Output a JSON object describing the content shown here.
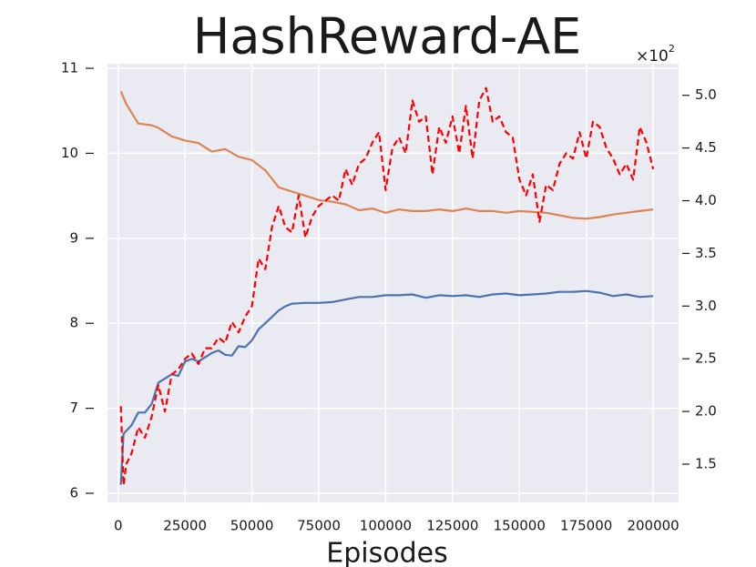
{
  "chart_data": {
    "type": "line",
    "title": "HashReward-AE",
    "x_label": "Episodes",
    "y2_offset": {
      "text": "×10",
      "exponent": "2"
    },
    "xlim": [
      -4000,
      209500
    ],
    "xticks": [
      0,
      25000,
      50000,
      75000,
      100000,
      125000,
      150000,
      175000,
      200000
    ],
    "ylim": [
      5.893,
      11.054
    ],
    "yticks": [
      6,
      7,
      8,
      9,
      10,
      11
    ],
    "y2lim": [
      1.137,
      5.3
    ],
    "y2ticks": [
      1.5,
      {
        "value": 2,
        "label": "2.0"
      },
      2.5,
      {
        "value": 3,
        "label": "3.0"
      },
      3.5,
      {
        "value": 4,
        "label": "4.0"
      },
      4.5,
      {
        "value": 5,
        "label": "5.0"
      }
    ],
    "grid": true,
    "series": [
      {
        "color": "#4c72b0",
        "dash": false,
        "x": [
          1000,
          2000,
          5000,
          7500,
          10000,
          12500,
          15000,
          17500,
          20000,
          22500,
          25000,
          27500,
          30000,
          35000,
          37500,
          40000,
          42500,
          45000,
          47500,
          50000,
          52500,
          55000,
          60000,
          62500,
          65000,
          70000,
          75000,
          80000,
          85000,
          90000,
          95000,
          100000,
          105000,
          110000,
          115000,
          120000,
          125000,
          130000,
          135000,
          140000,
          145000,
          150000,
          155000,
          160000,
          165000,
          170000,
          175000,
          180000,
          185000,
          190000,
          195000,
          200000
        ],
        "values": [
          6.1,
          6.7,
          6.8,
          6.95,
          6.95,
          7.05,
          7.3,
          7.35,
          7.4,
          7.38,
          7.55,
          7.58,
          7.55,
          7.65,
          7.68,
          7.63,
          7.62,
          7.73,
          7.72,
          7.8,
          7.93,
          8.0,
          8.15,
          8.2,
          8.23,
          8.24,
          8.24,
          8.25,
          8.28,
          8.31,
          8.31,
          8.33,
          8.33,
          8.34,
          8.3,
          8.33,
          8.32,
          8.33,
          8.31,
          8.34,
          8.35,
          8.33,
          8.34,
          8.35,
          8.37,
          8.37,
          8.38,
          8.36,
          8.32,
          8.34,
          8.31,
          8.32
        ]
      },
      {
        "color": "#dd8452",
        "dash": false,
        "x": [
          1000,
          3000,
          7500,
          12500,
          15000,
          20000,
          25000,
          30000,
          35000,
          40000,
          45000,
          50000,
          55000,
          60000,
          65000,
          70000,
          75000,
          80000,
          85000,
          90000,
          95000,
          100000,
          105000,
          110000,
          115000,
          120000,
          125000,
          130000,
          135000,
          140000,
          145000,
          150000,
          155000,
          160000,
          165000,
          170000,
          175000,
          180000,
          185000,
          190000,
          195000,
          200000
        ],
        "values": [
          10.73,
          10.58,
          10.35,
          10.33,
          10.3,
          10.2,
          10.15,
          10.12,
          10.02,
          10.05,
          9.96,
          9.92,
          9.8,
          9.6,
          9.55,
          9.5,
          9.45,
          9.43,
          9.4,
          9.33,
          9.35,
          9.3,
          9.34,
          9.32,
          9.32,
          9.34,
          9.32,
          9.35,
          9.32,
          9.32,
          9.3,
          9.32,
          9.31,
          9.3,
          9.27,
          9.24,
          9.23,
          9.25,
          9.28,
          9.3,
          9.32,
          9.34
        ]
      },
      {
        "color": "#ff0000",
        "dash": true,
        "axis": "y2",
        "x": [
          1000,
          2000,
          3000,
          5000,
          7500,
          10000,
          12500,
          15000,
          17500,
          20000,
          22500,
          25000,
          27500,
          30000,
          32500,
          35000,
          37500,
          40000,
          42500,
          45000,
          47500,
          50000,
          52500,
          55000,
          57500,
          60000,
          62500,
          65000,
          67500,
          70000,
          72500,
          75000,
          77500,
          80000,
          82500,
          85000,
          87500,
          90000,
          92500,
          95000,
          97500,
          100000,
          102500,
          105000,
          107500,
          110000,
          112500,
          115000,
          117500,
          120000,
          122500,
          125000,
          127500,
          130000,
          132500,
          135000,
          137500,
          140000,
          142500,
          145000,
          147500,
          150000,
          152500,
          155000,
          157500,
          160000,
          162500,
          165000,
          167500,
          170000,
          172500,
          175000,
          177500,
          180000,
          182500,
          185000,
          187500,
          190000,
          192500,
          195000,
          197500,
          200000
        ],
        "values": [
          2.05,
          1.3,
          1.5,
          1.6,
          1.85,
          1.75,
          1.95,
          2.25,
          2.0,
          2.35,
          2.4,
          2.5,
          2.55,
          2.45,
          2.6,
          2.6,
          2.7,
          2.65,
          2.85,
          2.75,
          2.9,
          3.0,
          3.45,
          3.35,
          3.75,
          3.95,
          3.75,
          3.7,
          4.05,
          3.65,
          3.85,
          3.95,
          4.0,
          4.05,
          4.0,
          4.3,
          4.15,
          4.35,
          4.4,
          4.55,
          4.65,
          4.1,
          4.5,
          4.6,
          4.45,
          4.95,
          4.75,
          4.8,
          4.25,
          4.7,
          4.55,
          4.8,
          4.45,
          4.9,
          4.4,
          4.95,
          5.07,
          4.75,
          4.8,
          4.65,
          4.6,
          4.2,
          4.05,
          4.25,
          3.8,
          4.15,
          4.1,
          4.35,
          4.45,
          4.4,
          4.65,
          4.4,
          4.75,
          4.7,
          4.5,
          4.4,
          4.25,
          4.35,
          4.2,
          4.7,
          4.55,
          4.3
        ]
      }
    ]
  }
}
